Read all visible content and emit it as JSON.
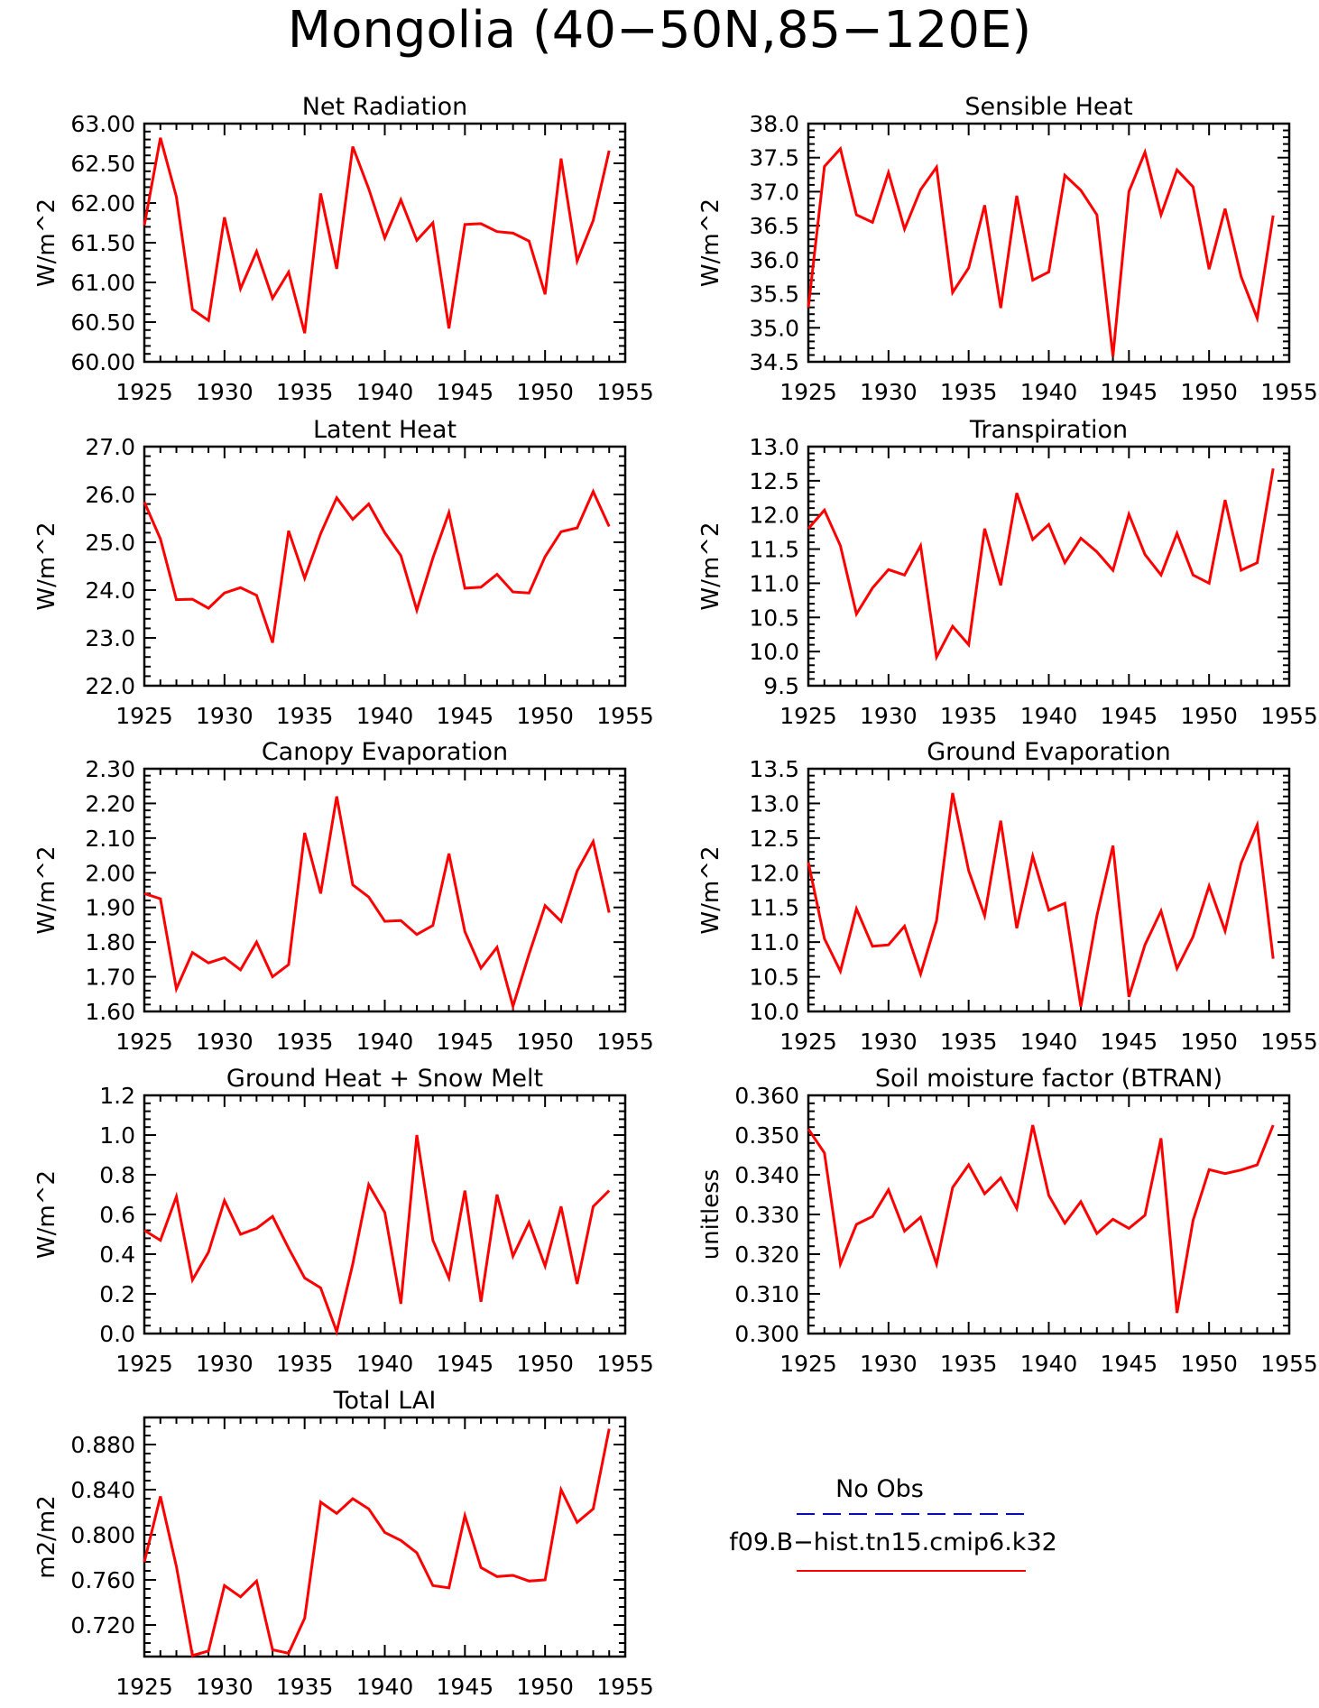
{
  "title": "Mongolia (40−50N,85−120E)",
  "colors": {
    "model": "#ff0000",
    "obs": "#0000ff",
    "axes": "#000000"
  },
  "legend": {
    "entries": [
      {
        "label": "No Obs",
        "color": "#0000ff",
        "style": "dashed"
      },
      {
        "label": "f09.B−hist.tn15.cmip6.k32",
        "color": "#ff0000",
        "style": "solid"
      }
    ]
  },
  "chart_data": [
    {
      "type": "line",
      "title": "Net Radiation",
      "ylabel": "W/m^2",
      "xlim": [
        1925,
        1955
      ],
      "ylim": [
        60.0,
        63.0
      ],
      "xticks": [
        1925,
        1930,
        1935,
        1940,
        1945,
        1950,
        1955
      ],
      "yticks": [
        "60.00",
        "60.50",
        "61.00",
        "61.50",
        "62.00",
        "62.50",
        "63.00"
      ],
      "x": [
        1925,
        1926,
        1927,
        1928,
        1929,
        1930,
        1931,
        1932,
        1933,
        1934,
        1935,
        1936,
        1937,
        1938,
        1939,
        1940,
        1941,
        1942,
        1943,
        1944,
        1945,
        1946,
        1947,
        1948,
        1949,
        1950,
        1951,
        1952,
        1953,
        1954
      ],
      "series": [
        {
          "name": "f09.B−hist.tn15.cmip6.k32",
          "values": [
            61.72,
            62.82,
            62.08,
            60.66,
            60.52,
            61.82,
            60.92,
            61.39,
            60.8,
            61.13,
            60.36,
            62.12,
            61.17,
            62.71,
            62.18,
            61.56,
            62.04,
            61.53,
            61.75,
            60.42,
            61.73,
            61.74,
            61.64,
            61.62,
            61.52,
            60.85,
            62.56,
            61.27,
            61.78,
            62.66
          ]
        }
      ]
    },
    {
      "type": "line",
      "title": "Sensible Heat",
      "ylabel": "W/m^2",
      "xlim": [
        1925,
        1955
      ],
      "ylim": [
        34.5,
        38.0
      ],
      "xticks": [
        1925,
        1930,
        1935,
        1940,
        1945,
        1950,
        1955
      ],
      "yticks": [
        "34.5",
        "35.0",
        "35.5",
        "36.0",
        "36.5",
        "37.0",
        "37.5",
        "38.0"
      ],
      "x": [
        1925,
        1926,
        1927,
        1928,
        1929,
        1930,
        1931,
        1932,
        1933,
        1934,
        1935,
        1936,
        1937,
        1938,
        1939,
        1940,
        1941,
        1942,
        1943,
        1944,
        1945,
        1946,
        1947,
        1948,
        1949,
        1950,
        1951,
        1952,
        1953,
        1954
      ],
      "series": [
        {
          "name": "f09.B−hist.tn15.cmip6.k32",
          "values": [
            35.3,
            37.37,
            37.63,
            36.66,
            36.55,
            37.28,
            36.45,
            37.03,
            37.36,
            35.52,
            35.88,
            36.8,
            35.29,
            36.94,
            35.7,
            35.82,
            37.24,
            37.02,
            36.66,
            34.58,
            37.0,
            37.58,
            36.66,
            37.32,
            37.07,
            35.86,
            36.75,
            35.75,
            35.14,
            36.65
          ]
        }
      ]
    },
    {
      "type": "line",
      "title": "Latent Heat",
      "ylabel": "W/m^2",
      "xlim": [
        1925,
        1955
      ],
      "ylim": [
        22.0,
        27.0
      ],
      "xticks": [
        1925,
        1930,
        1935,
        1940,
        1945,
        1950,
        1955
      ],
      "yticks": [
        "22.0",
        "23.0",
        "24.0",
        "25.0",
        "26.0",
        "27.0"
      ],
      "x": [
        1925,
        1926,
        1927,
        1928,
        1929,
        1930,
        1931,
        1932,
        1933,
        1934,
        1935,
        1936,
        1937,
        1938,
        1939,
        1940,
        1941,
        1942,
        1943,
        1944,
        1945,
        1946,
        1947,
        1948,
        1949,
        1950,
        1951,
        1952,
        1953,
        1954
      ],
      "series": [
        {
          "name": "f09.B−hist.tn15.cmip6.k32",
          "values": [
            25.84,
            25.07,
            23.8,
            23.81,
            23.62,
            23.94,
            24.05,
            23.89,
            22.9,
            25.24,
            24.25,
            25.18,
            25.93,
            25.48,
            25.8,
            25.2,
            24.72,
            23.58,
            24.67,
            25.62,
            24.04,
            24.06,
            24.33,
            23.96,
            23.94,
            24.7,
            25.22,
            25.3,
            26.06,
            25.33
          ]
        }
      ]
    },
    {
      "type": "line",
      "title": "Transpiration",
      "ylabel": "W/m^2",
      "xlim": [
        1925,
        1955
      ],
      "ylim": [
        9.5,
        13.0
      ],
      "xticks": [
        1925,
        1930,
        1935,
        1940,
        1945,
        1950,
        1955
      ],
      "yticks": [
        "9.5",
        "10.0",
        "10.5",
        "11.0",
        "11.5",
        "12.0",
        "12.5",
        "13.0"
      ],
      "x": [
        1925,
        1926,
        1927,
        1928,
        1929,
        1930,
        1931,
        1932,
        1933,
        1934,
        1935,
        1936,
        1937,
        1938,
        1939,
        1940,
        1941,
        1942,
        1943,
        1944,
        1945,
        1946,
        1947,
        1948,
        1949,
        1950,
        1951,
        1952,
        1953,
        1954
      ],
      "series": [
        {
          "name": "f09.B−hist.tn15.cmip6.k32",
          "values": [
            11.8,
            12.07,
            11.55,
            10.55,
            10.93,
            11.2,
            11.12,
            11.55,
            9.92,
            10.37,
            10.1,
            11.8,
            10.97,
            12.32,
            11.64,
            11.86,
            11.3,
            11.66,
            11.46,
            11.19,
            12.01,
            11.42,
            11.12,
            11.73,
            11.12,
            11.0,
            12.22,
            11.19,
            11.3,
            12.68
          ]
        }
      ]
    },
    {
      "type": "line",
      "title": "Canopy Evaporation",
      "ylabel": "W/m^2",
      "xlim": [
        1925,
        1955
      ],
      "ylim": [
        1.6,
        2.3
      ],
      "xticks": [
        1925,
        1930,
        1935,
        1940,
        1945,
        1950,
        1955
      ],
      "yticks": [
        "1.60",
        "1.70",
        "1.80",
        "1.90",
        "2.00",
        "2.10",
        "2.20",
        "2.30"
      ],
      "x": [
        1925,
        1926,
        1927,
        1928,
        1929,
        1930,
        1931,
        1932,
        1933,
        1934,
        1935,
        1936,
        1937,
        1938,
        1939,
        1940,
        1941,
        1942,
        1943,
        1944,
        1945,
        1946,
        1947,
        1948,
        1949,
        1950,
        1951,
        1952,
        1953,
        1954
      ],
      "series": [
        {
          "name": "f09.B−hist.tn15.cmip6.k32",
          "values": [
            1.94,
            1.925,
            1.665,
            1.77,
            1.74,
            1.755,
            1.72,
            1.8,
            1.7,
            1.735,
            2.115,
            1.94,
            2.22,
            1.965,
            1.93,
            1.86,
            1.862,
            1.822,
            1.848,
            2.055,
            1.83,
            1.725,
            1.785,
            1.615,
            1.765,
            1.905,
            1.86,
            2.005,
            2.09,
            1.885
          ]
        }
      ]
    },
    {
      "type": "line",
      "title": "Ground Evaporation",
      "ylabel": "W/m^2",
      "xlim": [
        1925,
        1955
      ],
      "ylim": [
        10.0,
        13.5
      ],
      "xticks": [
        1925,
        1930,
        1935,
        1940,
        1945,
        1950,
        1955
      ],
      "yticks": [
        "10.0",
        "10.5",
        "11.0",
        "11.5",
        "12.0",
        "12.5",
        "13.0",
        "13.5"
      ],
      "x": [
        1925,
        1926,
        1927,
        1928,
        1929,
        1930,
        1931,
        1932,
        1933,
        1934,
        1935,
        1936,
        1937,
        1938,
        1939,
        1940,
        1941,
        1942,
        1943,
        1944,
        1945,
        1946,
        1947,
        1948,
        1949,
        1950,
        1951,
        1952,
        1953,
        1954
      ],
      "series": [
        {
          "name": "f09.B−hist.tn15.cmip6.k32",
          "values": [
            12.15,
            11.05,
            10.58,
            11.48,
            10.94,
            10.96,
            11.23,
            10.54,
            11.31,
            13.15,
            12.03,
            11.38,
            12.75,
            11.2,
            12.24,
            11.46,
            11.56,
            10.07,
            11.38,
            12.39,
            10.21,
            10.96,
            11.45,
            10.62,
            11.08,
            11.81,
            11.16,
            12.14,
            12.69,
            10.76
          ]
        }
      ]
    },
    {
      "type": "line",
      "title": "Ground Heat + Snow Melt",
      "ylabel": "W/m^2",
      "xlim": [
        1925,
        1955
      ],
      "ylim": [
        0.0,
        1.2
      ],
      "xticks": [
        1925,
        1930,
        1935,
        1940,
        1945,
        1950,
        1955
      ],
      "yticks": [
        "0.0",
        "0.2",
        "0.4",
        "0.6",
        "0.8",
        "1.0",
        "1.2"
      ],
      "x": [
        1925,
        1926,
        1927,
        1928,
        1929,
        1930,
        1931,
        1932,
        1933,
        1934,
        1935,
        1936,
        1937,
        1938,
        1939,
        1940,
        1941,
        1942,
        1943,
        1944,
        1945,
        1946,
        1947,
        1948,
        1949,
        1950,
        1951,
        1952,
        1953,
        1954
      ],
      "series": [
        {
          "name": "f09.B−hist.tn15.cmip6.k32",
          "values": [
            0.52,
            0.47,
            0.69,
            0.27,
            0.41,
            0.67,
            0.5,
            0.53,
            0.59,
            0.43,
            0.28,
            0.23,
            0.01,
            0.35,
            0.75,
            0.61,
            0.15,
            1.0,
            0.47,
            0.28,
            0.72,
            0.16,
            0.7,
            0.39,
            0.56,
            0.34,
            0.64,
            0.25,
            0.64,
            0.72
          ]
        }
      ]
    },
    {
      "type": "line",
      "title": "Soil moisture factor (BTRAN)",
      "ylabel": "unitless",
      "xlim": [
        1925,
        1955
      ],
      "ylim": [
        0.3,
        0.36
      ],
      "xticks": [
        1925,
        1930,
        1935,
        1940,
        1945,
        1950,
        1955
      ],
      "yticks": [
        "0.300",
        "0.310",
        "0.320",
        "0.330",
        "0.340",
        "0.350",
        "0.360"
      ],
      "x": [
        1925,
        1926,
        1927,
        1928,
        1929,
        1930,
        1931,
        1932,
        1933,
        1934,
        1935,
        1936,
        1937,
        1938,
        1939,
        1940,
        1941,
        1942,
        1943,
        1944,
        1945,
        1946,
        1947,
        1948,
        1949,
        1950,
        1951,
        1952,
        1953,
        1954
      ],
      "series": [
        {
          "name": "f09.B−hist.tn15.cmip6.k32",
          "values": [
            0.3515,
            0.3455,
            0.3175,
            0.3275,
            0.3295,
            0.3362,
            0.3258,
            0.3293,
            0.3175,
            0.3368,
            0.3425,
            0.3352,
            0.3392,
            0.3315,
            0.3525,
            0.3348,
            0.3278,
            0.3332,
            0.3252,
            0.3288,
            0.3265,
            0.3298,
            0.3492,
            0.3052,
            0.3285,
            0.3413,
            0.3403,
            0.3412,
            0.3425,
            0.3525
          ]
        }
      ]
    },
    {
      "type": "line",
      "title": "Total LAI",
      "ylabel": "m2/m2",
      "xlim": [
        1925,
        1955
      ],
      "ylim": [
        0.692,
        0.904
      ],
      "xticks": [
        1925,
        1930,
        1935,
        1940,
        1945,
        1950,
        1955
      ],
      "yticks": [
        "0.720",
        "0.760",
        "0.800",
        "0.840",
        "0.880"
      ],
      "x": [
        1925,
        1926,
        1927,
        1928,
        1929,
        1930,
        1931,
        1932,
        1933,
        1934,
        1935,
        1936,
        1937,
        1938,
        1939,
        1940,
        1941,
        1942,
        1943,
        1944,
        1945,
        1946,
        1947,
        1948,
        1949,
        1950,
        1951,
        1952,
        1953,
        1954
      ],
      "series": [
        {
          "name": "f09.B−hist.tn15.cmip6.k32",
          "values": [
            0.776,
            0.834,
            0.772,
            0.693,
            0.697,
            0.755,
            0.745,
            0.759,
            0.698,
            0.695,
            0.726,
            0.829,
            0.819,
            0.832,
            0.823,
            0.802,
            0.795,
            0.784,
            0.755,
            0.753,
            0.817,
            0.771,
            0.763,
            0.764,
            0.759,
            0.76,
            0.84,
            0.811,
            0.823,
            0.894
          ]
        }
      ]
    }
  ]
}
